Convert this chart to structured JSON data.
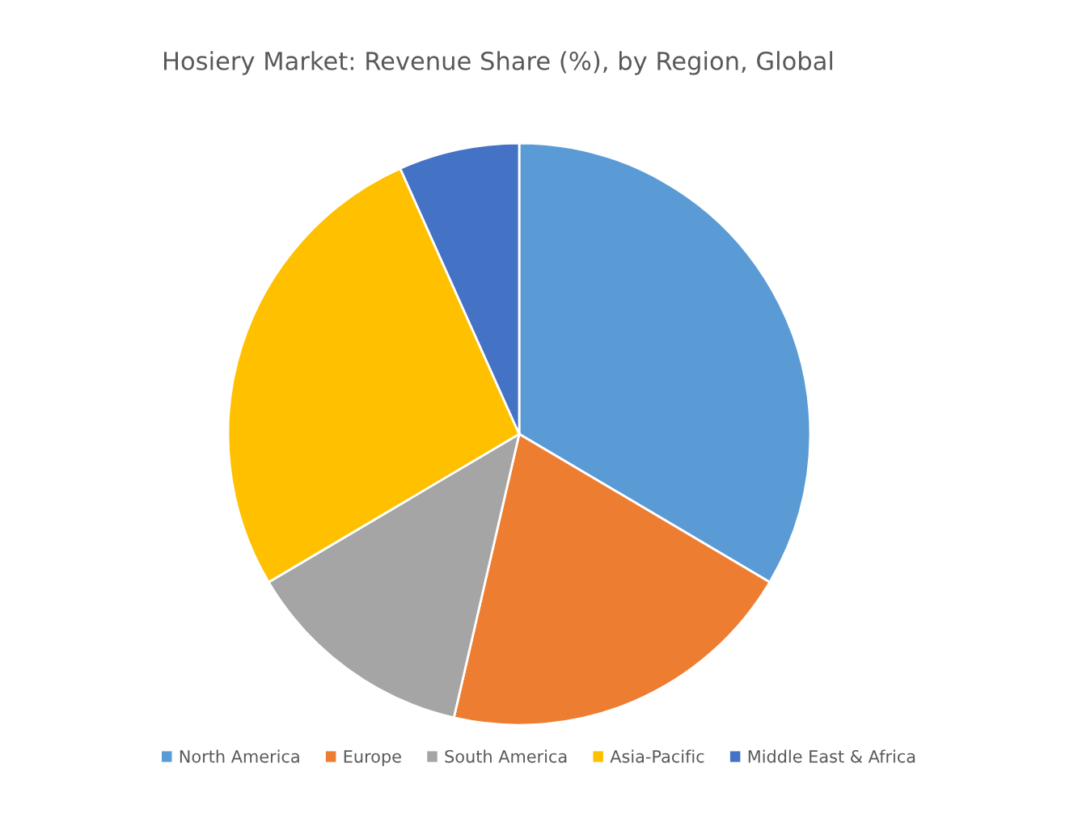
{
  "chart_data": {
    "type": "pie",
    "title": "Hosiery Market: Revenue Share (%), by Region, Global",
    "categories": [
      "North America",
      "Europe",
      "South America",
      "Asia-Pacific",
      "Middle East & Africa"
    ],
    "values": [
      33.5,
      20.1,
      12.9,
      26.8,
      6.7
    ],
    "colors": [
      "#5b9bd5",
      "#ed7d31",
      "#a5a5a5",
      "#ffc000",
      "#4472c4"
    ],
    "legend": "bottom"
  }
}
